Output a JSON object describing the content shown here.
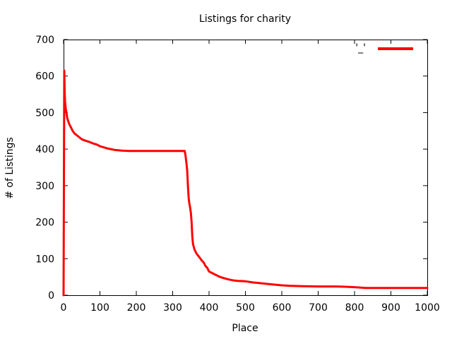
{
  "chart_data": {
    "type": "line",
    "title": "Listings for charity",
    "xlabel": "Place",
    "ylabel": "# of Listings",
    "xlim": [
      0,
      1000
    ],
    "ylim": [
      0,
      700
    ],
    "xticks": [
      0,
      100,
      200,
      300,
      400,
      500,
      600,
      700,
      800,
      900,
      1000
    ],
    "yticks": [
      0,
      100,
      200,
      300,
      400,
      500,
      600,
      700
    ],
    "grid": false,
    "legend": "top-right",
    "colors": {
      "series": "#ff0000",
      "axes": "#000000",
      "background": "#ffffff"
    },
    "series": [
      {
        "name": "'_'",
        "color": "#ff0000",
        "points": [
          [
            0,
            0
          ],
          [
            1,
            300
          ],
          [
            2,
            615
          ],
          [
            3,
            560
          ],
          [
            4,
            530
          ],
          [
            6,
            510
          ],
          [
            8,
            500
          ],
          [
            10,
            485
          ],
          [
            15,
            470
          ],
          [
            20,
            460
          ],
          [
            25,
            450
          ],
          [
            30,
            443
          ],
          [
            40,
            435
          ],
          [
            50,
            427
          ],
          [
            60,
            423
          ],
          [
            70,
            420
          ],
          [
            80,
            416
          ],
          [
            90,
            413
          ],
          [
            100,
            408
          ],
          [
            110,
            405
          ],
          [
            120,
            402
          ],
          [
            130,
            400
          ],
          [
            140,
            398
          ],
          [
            150,
            397
          ],
          [
            160,
            396
          ],
          [
            180,
            395
          ],
          [
            200,
            395
          ],
          [
            250,
            395
          ],
          [
            300,
            395
          ],
          [
            333,
            395
          ],
          [
            335,
            385
          ],
          [
            338,
            360
          ],
          [
            340,
            340
          ],
          [
            342,
            300
          ],
          [
            344,
            265
          ],
          [
            346,
            250
          ],
          [
            348,
            240
          ],
          [
            350,
            225
          ],
          [
            352,
            200
          ],
          [
            354,
            160
          ],
          [
            356,
            140
          ],
          [
            360,
            125
          ],
          [
            365,
            115
          ],
          [
            370,
            108
          ],
          [
            375,
            102
          ],
          [
            380,
            95
          ],
          [
            385,
            90
          ],
          [
            390,
            80
          ],
          [
            395,
            75
          ],
          [
            400,
            65
          ],
          [
            410,
            60
          ],
          [
            420,
            55
          ],
          [
            430,
            50
          ],
          [
            440,
            47
          ],
          [
            450,
            44
          ],
          [
            460,
            42
          ],
          [
            470,
            40
          ],
          [
            480,
            39
          ],
          [
            500,
            38
          ],
          [
            520,
            35
          ],
          [
            540,
            33
          ],
          [
            560,
            31
          ],
          [
            580,
            29
          ],
          [
            600,
            27
          ],
          [
            620,
            26
          ],
          [
            650,
            25
          ],
          [
            700,
            24
          ],
          [
            750,
            24
          ],
          [
            780,
            23
          ],
          [
            800,
            22
          ],
          [
            830,
            20
          ],
          [
            900,
            20
          ],
          [
            1000,
            20
          ]
        ]
      }
    ]
  }
}
